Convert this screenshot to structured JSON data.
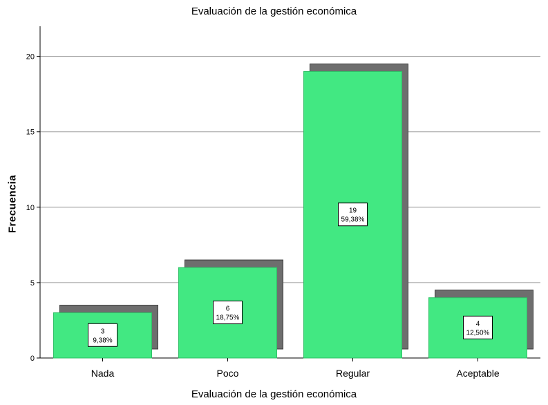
{
  "chart_data": {
    "type": "bar",
    "title": "Evaluación de la gestión económica",
    "xlabel": "Evaluación de la gestión económica",
    "ylabel": "Frecuencia",
    "categories": [
      "Nada",
      "Poco",
      "Regular",
      "Aceptable"
    ],
    "values": [
      3,
      6,
      19,
      4
    ],
    "percent_labels": [
      "9,38%",
      "18,75%",
      "59,38%",
      "12,50%"
    ],
    "ylim": [
      0,
      22
    ],
    "yticks": [
      0,
      5,
      10,
      15,
      20
    ],
    "grid": true,
    "bar_color": "#42e882",
    "shadow_color": "#6e6e6e"
  }
}
